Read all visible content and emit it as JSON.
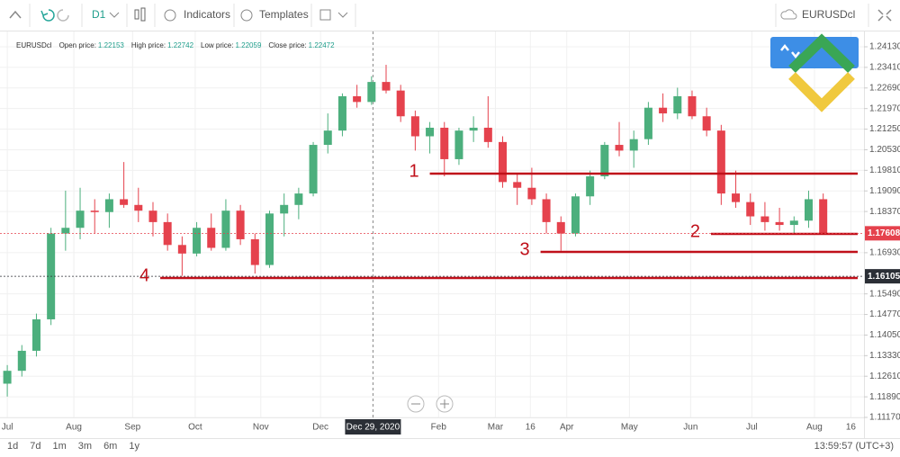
{
  "toolbar": {
    "timeframe": "D1",
    "indicators": "Indicators",
    "templates": "Templates",
    "symbol": "EURUSDcl"
  },
  "info": {
    "symbol": "EURUSDcl",
    "items": [
      {
        "label": "Open price:",
        "value": "1.22153"
      },
      {
        "label": "High price:",
        "value": "1.22742"
      },
      {
        "label": "Low price:",
        "value": "1.22059"
      },
      {
        "label": "Close price:",
        "value": "1.22472"
      }
    ]
  },
  "chart_data": {
    "type": "candlestick",
    "up_color": "#4caf7d",
    "down_color": "#e5424d",
    "xlim": [
      -0.5,
      58.8
    ],
    "ylim": [
      1.1117,
      1.24665
    ],
    "yticks": [
      {
        "value": 1.2413,
        "label": "1.24130"
      },
      {
        "value": 1.2341,
        "label": "1.23410"
      },
      {
        "value": 1.2269,
        "label": "1.22690"
      },
      {
        "value": 1.2197,
        "label": "1.21970"
      },
      {
        "value": 1.2125,
        "label": "1.21250"
      },
      {
        "value": 1.2053,
        "label": "1.20530"
      },
      {
        "value": 1.1981,
        "label": "1.19810"
      },
      {
        "value": 1.1909,
        "label": "1.19090"
      },
      {
        "value": 1.1837,
        "label": "1.18370"
      },
      {
        "value": 1.1693,
        "label": "1.16930"
      },
      {
        "value": 1.1549,
        "label": "1.15490"
      },
      {
        "value": 1.1477,
        "label": "1.14770"
      },
      {
        "value": 1.1405,
        "label": "1.14050"
      },
      {
        "value": 1.1333,
        "label": "1.13330"
      },
      {
        "value": 1.1261,
        "label": "1.12610"
      },
      {
        "value": 1.1189,
        "label": "1.11890"
      },
      {
        "value": 1.1117,
        "label": "1.11170"
      }
    ],
    "xticks": [
      {
        "value": 0,
        "label": "Jul"
      },
      {
        "value": 4.57,
        "label": "Aug"
      },
      {
        "value": 8.6,
        "label": "Sep"
      },
      {
        "value": 12.9,
        "label": "Oct"
      },
      {
        "value": 17.4,
        "label": "Nov"
      },
      {
        "value": 21.5,
        "label": "Dec"
      },
      {
        "value": 29.6,
        "label": "Feb"
      },
      {
        "value": 33.5,
        "label": "Mar"
      },
      {
        "value": 35.9,
        "label": "16"
      },
      {
        "value": 38.4,
        "label": "Apr"
      },
      {
        "value": 42.7,
        "label": "May"
      },
      {
        "value": 46.9,
        "label": "Jun"
      },
      {
        "value": 51.1,
        "label": "Jul"
      },
      {
        "value": 55.4,
        "label": "Aug"
      },
      {
        "value": 57.9,
        "label": "16"
      }
    ],
    "crosshair": {
      "value": 25.1,
      "label": "Dec 29, 2020"
    },
    "candles": [
      {
        "open": 1.1235,
        "high": 1.13,
        "low": 1.119,
        "close": 1.128
      },
      {
        "open": 1.128,
        "high": 1.137,
        "low": 1.126,
        "close": 1.135
      },
      {
        "open": 1.135,
        "high": 1.148,
        "low": 1.133,
        "close": 1.146
      },
      {
        "open": 1.146,
        "high": 1.178,
        "low": 1.144,
        "close": 1.176
      },
      {
        "open": 1.176,
        "high": 1.191,
        "low": 1.17,
        "close": 1.178
      },
      {
        "open": 1.178,
        "high": 1.192,
        "low": 1.174,
        "close": 1.184
      },
      {
        "open": 1.184,
        "high": 1.188,
        "low": 1.176,
        "close": 1.1835
      },
      {
        "open": 1.1835,
        "high": 1.19,
        "low": 1.178,
        "close": 1.188
      },
      {
        "open": 1.188,
        "high": 1.201,
        "low": 1.185,
        "close": 1.186
      },
      {
        "open": 1.186,
        "high": 1.192,
        "low": 1.18,
        "close": 1.184
      },
      {
        "open": 1.184,
        "high": 1.187,
        "low": 1.175,
        "close": 1.18
      },
      {
        "open": 1.18,
        "high": 1.183,
        "low": 1.17,
        "close": 1.172
      },
      {
        "open": 1.172,
        "high": 1.175,
        "low": 1.1612,
        "close": 1.169
      },
      {
        "open": 1.169,
        "high": 1.18,
        "low": 1.168,
        "close": 1.178
      },
      {
        "open": 1.178,
        "high": 1.183,
        "low": 1.17,
        "close": 1.171
      },
      {
        "open": 1.171,
        "high": 1.188,
        "low": 1.17,
        "close": 1.184
      },
      {
        "open": 1.184,
        "high": 1.186,
        "low": 1.172,
        "close": 1.174
      },
      {
        "open": 1.174,
        "high": 1.176,
        "low": 1.162,
        "close": 1.165
      },
      {
        "open": 1.165,
        "high": 1.184,
        "low": 1.164,
        "close": 1.183
      },
      {
        "open": 1.183,
        "high": 1.19,
        "low": 1.175,
        "close": 1.186
      },
      {
        "open": 1.186,
        "high": 1.192,
        "low": 1.181,
        "close": 1.19
      },
      {
        "open": 1.19,
        "high": 1.208,
        "low": 1.189,
        "close": 1.207
      },
      {
        "open": 1.207,
        "high": 1.218,
        "low": 1.204,
        "close": 1.212
      },
      {
        "open": 1.212,
        "high": 1.225,
        "low": 1.21,
        "close": 1.224
      },
      {
        "open": 1.224,
        "high": 1.228,
        "low": 1.22,
        "close": 1.222
      },
      {
        "open": 1.222,
        "high": 1.231,
        "low": 1.221,
        "close": 1.229
      },
      {
        "open": 1.229,
        "high": 1.235,
        "low": 1.225,
        "close": 1.226
      },
      {
        "open": 1.226,
        "high": 1.228,
        "low": 1.215,
        "close": 1.217
      },
      {
        "open": 1.217,
        "high": 1.219,
        "low": 1.205,
        "close": 1.21
      },
      {
        "open": 1.21,
        "high": 1.215,
        "low": 1.204,
        "close": 1.213
      },
      {
        "open": 1.213,
        "high": 1.215,
        "low": 1.196,
        "close": 1.202
      },
      {
        "open": 1.202,
        "high": 1.213,
        "low": 1.2,
        "close": 1.212
      },
      {
        "open": 1.212,
        "high": 1.217,
        "low": 1.208,
        "close": 1.213
      },
      {
        "open": 1.213,
        "high": 1.224,
        "low": 1.206,
        "close": 1.208
      },
      {
        "open": 1.208,
        "high": 1.21,
        "low": 1.192,
        "close": 1.194
      },
      {
        "open": 1.194,
        "high": 1.197,
        "low": 1.186,
        "close": 1.192
      },
      {
        "open": 1.192,
        "high": 1.199,
        "low": 1.186,
        "close": 1.188
      },
      {
        "open": 1.188,
        "high": 1.19,
        "low": 1.176,
        "close": 1.18
      },
      {
        "open": 1.18,
        "high": 1.182,
        "low": 1.17,
        "close": 1.176
      },
      {
        "open": 1.176,
        "high": 1.19,
        "low": 1.175,
        "close": 1.189
      },
      {
        "open": 1.189,
        "high": 1.198,
        "low": 1.186,
        "close": 1.196
      },
      {
        "open": 1.196,
        "high": 1.208,
        "low": 1.195,
        "close": 1.207
      },
      {
        "open": 1.207,
        "high": 1.215,
        "low": 1.203,
        "close": 1.205
      },
      {
        "open": 1.205,
        "high": 1.212,
        "low": 1.199,
        "close": 1.209
      },
      {
        "open": 1.209,
        "high": 1.222,
        "low": 1.207,
        "close": 1.22
      },
      {
        "open": 1.22,
        "high": 1.225,
        "low": 1.215,
        "close": 1.218
      },
      {
        "open": 1.218,
        "high": 1.227,
        "low": 1.216,
        "close": 1.224
      },
      {
        "open": 1.224,
        "high": 1.226,
        "low": 1.216,
        "close": 1.217
      },
      {
        "open": 1.217,
        "high": 1.22,
        "low": 1.21,
        "close": 1.212
      },
      {
        "open": 1.212,
        "high": 1.214,
        "low": 1.186,
        "close": 1.19
      },
      {
        "open": 1.19,
        "high": 1.198,
        "low": 1.185,
        "close": 1.187
      },
      {
        "open": 1.187,
        "high": 1.19,
        "low": 1.179,
        "close": 1.182
      },
      {
        "open": 1.182,
        "high": 1.187,
        "low": 1.177,
        "close": 1.18
      },
      {
        "open": 1.18,
        "high": 1.185,
        "low": 1.177,
        "close": 1.179
      },
      {
        "open": 1.179,
        "high": 1.182,
        "low": 1.176,
        "close": 1.1805
      },
      {
        "open": 1.1805,
        "high": 1.191,
        "low": 1.178,
        "close": 1.188
      },
      {
        "open": 1.188,
        "high": 1.19,
        "low": 1.1761,
        "close": 1.17608
      }
    ],
    "levels": [
      {
        "label": "1",
        "value": 1.19695,
        "from": 29.0
      },
      {
        "label": "2",
        "value": 1.17587,
        "from": 48.3
      },
      {
        "label": "3",
        "value": 1.16958,
        "from": 36.6
      },
      {
        "label": "4",
        "value": 1.16046,
        "from": 10.5
      }
    ],
    "level_color": "#c0101a",
    "price_tags": [
      {
        "value": 1.17608,
        "label": "1.17608",
        "color": "#e5424d"
      },
      {
        "value": 1.16105,
        "label": "1.16105",
        "color": "#2b2f36"
      }
    ]
  },
  "footer": {
    "ranges": [
      "1d",
      "7d",
      "1m",
      "3m",
      "6m",
      "1y"
    ],
    "clock": "13:59:57 (UTC+3)"
  }
}
